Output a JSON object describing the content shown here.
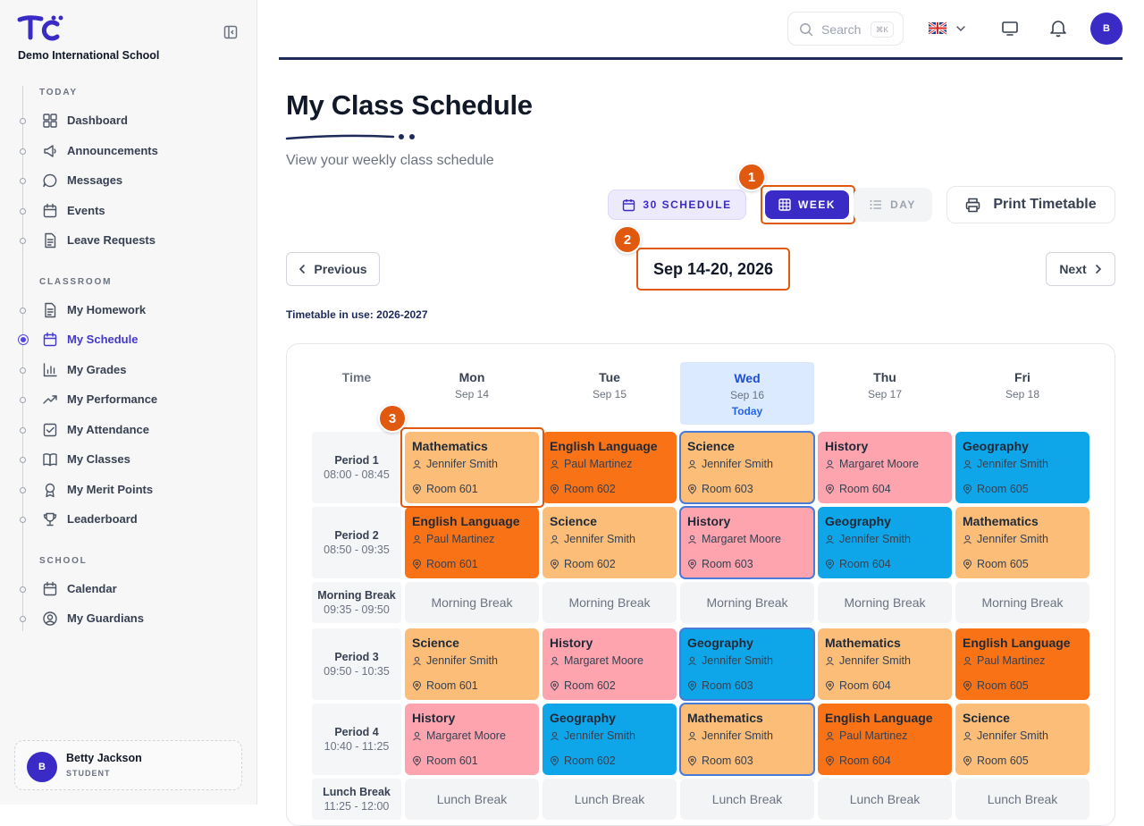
{
  "sidebar": {
    "school_name": "Demo International School",
    "sections": [
      {
        "title": "TODAY",
        "items": [
          {
            "label": "Dashboard",
            "icon": "dashboard-icon"
          },
          {
            "label": "Announcements",
            "icon": "megaphone-icon"
          },
          {
            "label": "Messages",
            "icon": "chat-icon"
          },
          {
            "label": "Events",
            "icon": "calendar-icon"
          },
          {
            "label": "Leave Requests",
            "icon": "document-icon"
          }
        ]
      },
      {
        "title": "CLASSROOM",
        "items": [
          {
            "label": "My Homework",
            "icon": "document-icon"
          },
          {
            "label": "My Schedule",
            "icon": "calendar-icon",
            "active": true
          },
          {
            "label": "My Grades",
            "icon": "bar-chart-icon"
          },
          {
            "label": "My Performance",
            "icon": "trend-icon"
          },
          {
            "label": "My Attendance",
            "icon": "checkbox-icon"
          },
          {
            "label": "My Classes",
            "icon": "book-icon"
          },
          {
            "label": "My Merit Points",
            "icon": "medal-icon"
          },
          {
            "label": "Leaderboard",
            "icon": "trophy-icon"
          }
        ]
      },
      {
        "title": "SCHOOL",
        "items": [
          {
            "label": "Calendar",
            "icon": "calendar-icon"
          },
          {
            "label": "My Guardians",
            "icon": "user-circle-icon"
          }
        ]
      }
    ],
    "user": {
      "initial": "B",
      "name": "Betty Jackson",
      "role": "STUDENT"
    }
  },
  "topbar": {
    "search_placeholder": "Search",
    "search_shortcut": "⌘K",
    "avatar_initial": "B"
  },
  "header": {
    "title": "My Class Schedule",
    "subtitle": "View your weekly class schedule",
    "btn_30": "30 SCHEDULE",
    "btn_week": "WEEK",
    "btn_day": "DAY",
    "btn_print": "Print Timetable",
    "btn_prev": "Previous",
    "btn_next": "Next",
    "date_range": "Sep 14-20, 2026",
    "timetable_in_use": "Timetable in use: 2026-2027"
  },
  "markers": [
    "1",
    "2",
    "3"
  ],
  "colors": {
    "Mathematics": "#fbbd77",
    "English Language": "#f97316",
    "Science": "#fbbd77",
    "History": "#fda4af",
    "Geography": "#0ea5e9",
    "accent": "#3b2bc6",
    "highlight": "#e0590f"
  },
  "grid": {
    "time_label": "Time",
    "today_label": "Today",
    "days": [
      {
        "day": "Mon",
        "date": "Sep 14"
      },
      {
        "day": "Tue",
        "date": "Sep 15"
      },
      {
        "day": "Wed",
        "date": "Sep 16",
        "today": true
      },
      {
        "day": "Thu",
        "date": "Sep 17"
      },
      {
        "day": "Fri",
        "date": "Sep 18"
      }
    ],
    "rows": [
      {
        "name": "Period 1",
        "time": "08:00 - 08:45",
        "type": "lesson",
        "cells": [
          {
            "subject": "Mathematics",
            "teacher": "Jennifer Smith",
            "room": "Room 601"
          },
          {
            "subject": "English Language",
            "teacher": "Paul Martinez",
            "room": "Room 602"
          },
          {
            "subject": "Science",
            "teacher": "Jennifer Smith",
            "room": "Room 603"
          },
          {
            "subject": "History",
            "teacher": "Margaret Moore",
            "room": "Room 604"
          },
          {
            "subject": "Geography",
            "teacher": "Jennifer Smith",
            "room": "Room 605"
          }
        ]
      },
      {
        "name": "Period 2",
        "time": "08:50 - 09:35",
        "type": "lesson",
        "cells": [
          {
            "subject": "English Language",
            "teacher": "Paul Martinez",
            "room": "Room 601"
          },
          {
            "subject": "Science",
            "teacher": "Jennifer Smith",
            "room": "Room 602"
          },
          {
            "subject": "History",
            "teacher": "Margaret Moore",
            "room": "Room 603"
          },
          {
            "subject": "Geography",
            "teacher": "Jennifer Smith",
            "room": "Room 604"
          },
          {
            "subject": "Mathematics",
            "teacher": "Jennifer Smith",
            "room": "Room 605"
          }
        ]
      },
      {
        "name": "Morning Break",
        "time": "09:35 - 09:50",
        "type": "break",
        "label": "Morning Break"
      },
      {
        "name": "Period 3",
        "time": "09:50 - 10:35",
        "type": "lesson",
        "cells": [
          {
            "subject": "Science",
            "teacher": "Jennifer Smith",
            "room": "Room 601"
          },
          {
            "subject": "History",
            "teacher": "Margaret Moore",
            "room": "Room 602"
          },
          {
            "subject": "Geography",
            "teacher": "Jennifer Smith",
            "room": "Room 603"
          },
          {
            "subject": "Mathematics",
            "teacher": "Jennifer Smith",
            "room": "Room 604"
          },
          {
            "subject": "English Language",
            "teacher": "Paul Martinez",
            "room": "Room 605"
          }
        ]
      },
      {
        "name": "Period 4",
        "time": "10:40 - 11:25",
        "type": "lesson",
        "cells": [
          {
            "subject": "History",
            "teacher": "Margaret Moore",
            "room": "Room 601"
          },
          {
            "subject": "Geography",
            "teacher": "Jennifer Smith",
            "room": "Room 602"
          },
          {
            "subject": "Mathematics",
            "teacher": "Jennifer Smith",
            "room": "Room 603"
          },
          {
            "subject": "English Language",
            "teacher": "Paul Martinez",
            "room": "Room 604"
          },
          {
            "subject": "Science",
            "teacher": "Jennifer Smith",
            "room": "Room 605"
          }
        ]
      },
      {
        "name": "Lunch Break",
        "time": "11:25 - 12:00",
        "type": "break",
        "label": "Lunch Break"
      }
    ]
  }
}
